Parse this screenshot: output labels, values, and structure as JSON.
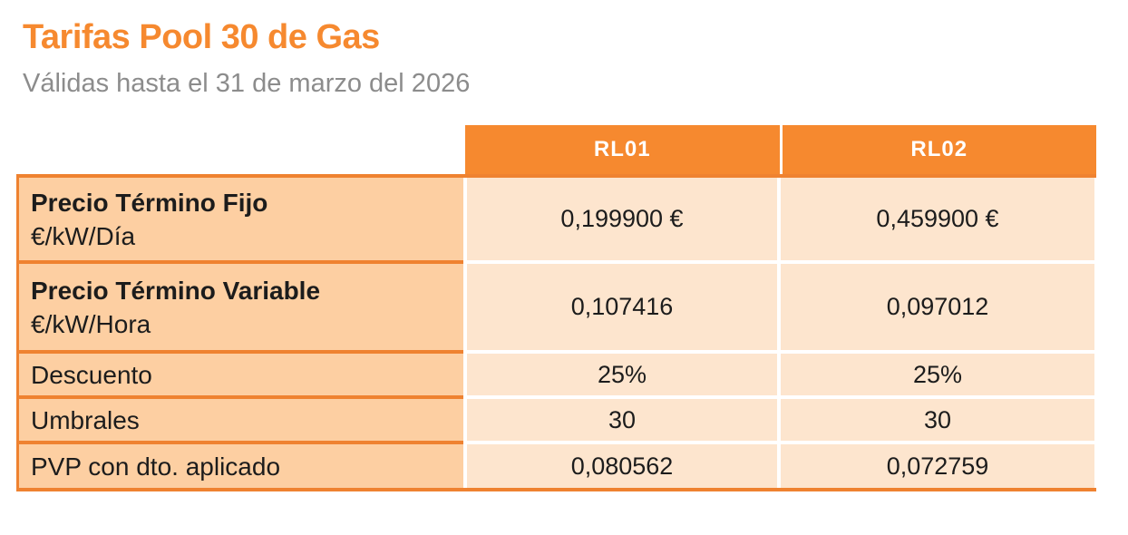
{
  "page": {
    "title": "Tarifas Pool 30 de Gas",
    "subtitle": "Válidas hasta el 31 de marzo del 2026"
  },
  "table": {
    "columns": [
      "RL01",
      "RL02"
    ],
    "rows": [
      {
        "label": "Precio Término Fijo",
        "sublabel": "€/kW/Día",
        "values": [
          "0,199900 €",
          "0,459900 €"
        ]
      },
      {
        "label": "Precio Término Variable",
        "sublabel": "€/kW/Hora",
        "values": [
          "0,107416",
          "0,097012"
        ]
      },
      {
        "label": "Descuento",
        "values": [
          "25%",
          "25%"
        ]
      },
      {
        "label": "Umbrales",
        "values": [
          "30",
          "30"
        ]
      },
      {
        "label": "PVP con dto. aplicado",
        "values": [
          "0,080562",
          "0,072759"
        ]
      }
    ]
  },
  "colors": {
    "accent_orange": "#F6892F",
    "border_orange": "#EF8230",
    "label_bg": "#FDCFA2",
    "cell_bg": "#FDE5CE",
    "header_text": "#FFFFFF",
    "subtitle_gray": "#8C8C8C",
    "text_dark": "#1C1C1C"
  }
}
